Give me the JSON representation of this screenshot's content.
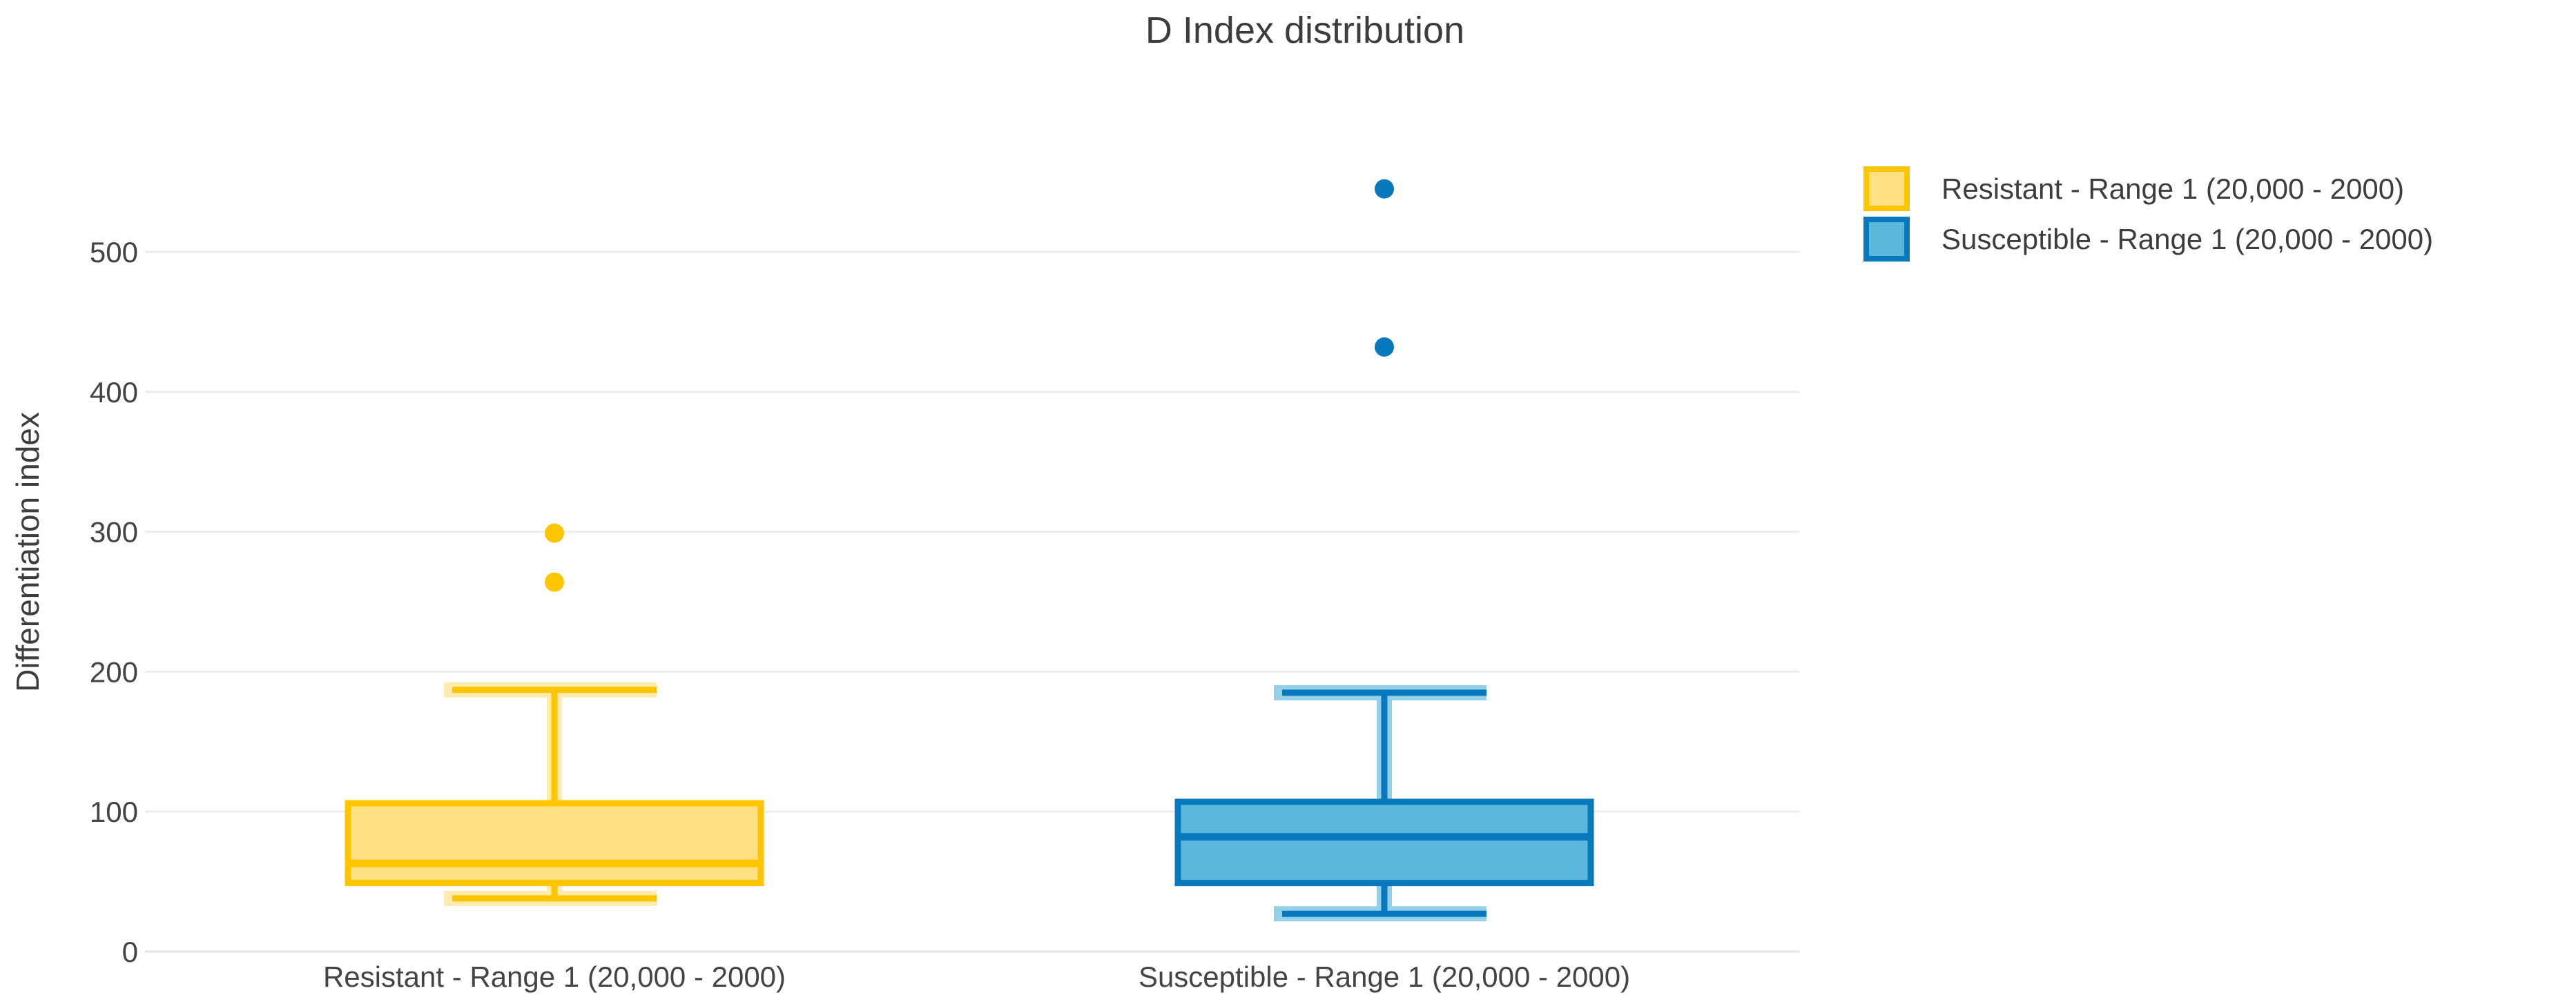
{
  "figure": {
    "background": "#ffffff"
  },
  "chart_data": {
    "type": "box",
    "title": "D Index distribution",
    "ylabel": "Differentiation index",
    "xlabel": "",
    "yticks": [
      0,
      100,
      200,
      300,
      400,
      500
    ],
    "ylim": [
      0,
      560
    ],
    "grid": true,
    "legend_position": "top-right",
    "categories": [
      "Resistant - Range 1 (20,000 - 2000)",
      "Susceptible - Range 1 (20,000 - 2000)"
    ],
    "series": [
      {
        "name": "Resistant - Range 1 (20,000 - 2000)",
        "slug": "resistant",
        "line_color": "#fdc500",
        "fill_color": "#ffe183",
        "whisker_low": 38,
        "q1": 49,
        "median": 63,
        "q3": 106,
        "whisker_high": 187,
        "outliers": [
          264,
          299
        ]
      },
      {
        "name": "Susceptible - Range 1 (20,000 - 2000)",
        "slug": "susceptible",
        "line_color": "#0879bd",
        "fill_color": "#5bb8dc",
        "whisker_low": 27,
        "q1": 49,
        "median": 82,
        "q3": 107,
        "whisker_high": 185,
        "outliers": [
          432,
          545
        ]
      }
    ],
    "colors": {
      "grid": "#ededed",
      "zero_line": "#e4e4e4",
      "title_text": "#3d3d3d",
      "tick_text": "#444444"
    }
  }
}
